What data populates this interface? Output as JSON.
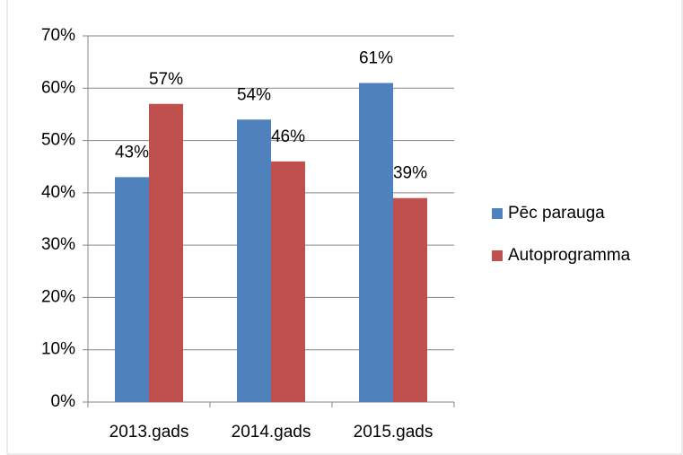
{
  "chart_data": {
    "type": "bar",
    "categories": [
      "2013.gads",
      "2014.gads",
      "2015.gads"
    ],
    "series": [
      {
        "name": "Pēc parauga",
        "color": "#4f81bd",
        "values": [
          43,
          54,
          61
        ],
        "value_labels": [
          "43%",
          "54%",
          "61%"
        ]
      },
      {
        "name": "Autoprogramma",
        "color": "#c0504d",
        "values": [
          57,
          46,
          39
        ],
        "value_labels": [
          "57%",
          "46%",
          "39%"
        ]
      }
    ],
    "ylim": [
      0,
      70
    ],
    "yticks": [
      {
        "value": 0,
        "label": "0%"
      },
      {
        "value": 10,
        "label": "10%"
      },
      {
        "value": 20,
        "label": "20%"
      },
      {
        "value": 30,
        "label": "30%"
      },
      {
        "value": 40,
        "label": "40%"
      },
      {
        "value": 50,
        "label": "50%"
      },
      {
        "value": 60,
        "label": "60%"
      },
      {
        "value": 70,
        "label": "70%"
      }
    ],
    "grid": true,
    "legend": "right"
  }
}
